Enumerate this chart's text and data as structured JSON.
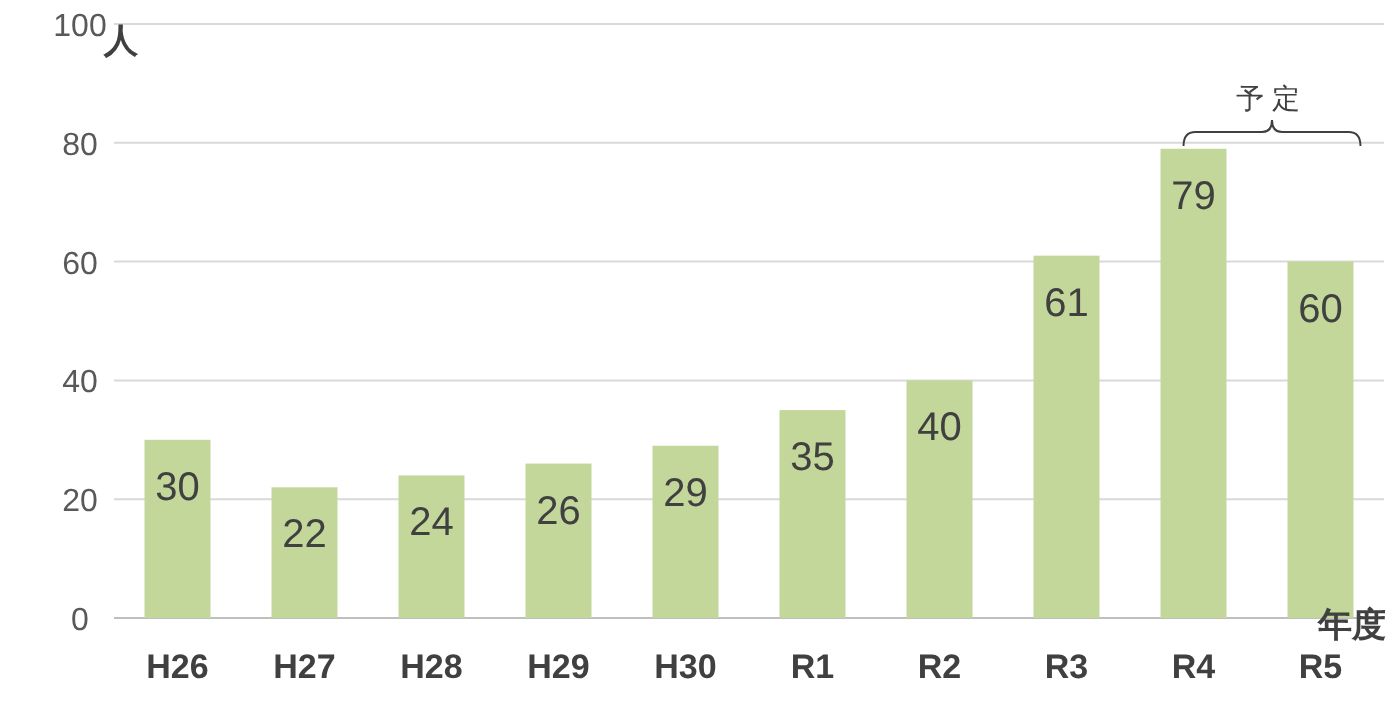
{
  "chart_data": {
    "type": "bar",
    "categories": [
      "H26",
      "H27",
      "H28",
      "H29",
      "H30",
      "R1",
      "R2",
      "R3",
      "R4",
      "R5"
    ],
    "values": [
      30,
      22,
      24,
      26,
      29,
      35,
      40,
      61,
      79,
      60
    ],
    "color": "#c4d79b",
    "ylim": [
      0,
      100
    ],
    "yticks": [
      0,
      20,
      40,
      60,
      80,
      100
    ],
    "grid": "y",
    "data_labels": true,
    "ylabel": "人",
    "xlabel": "年度",
    "annotations": [
      "予定"
    ]
  }
}
